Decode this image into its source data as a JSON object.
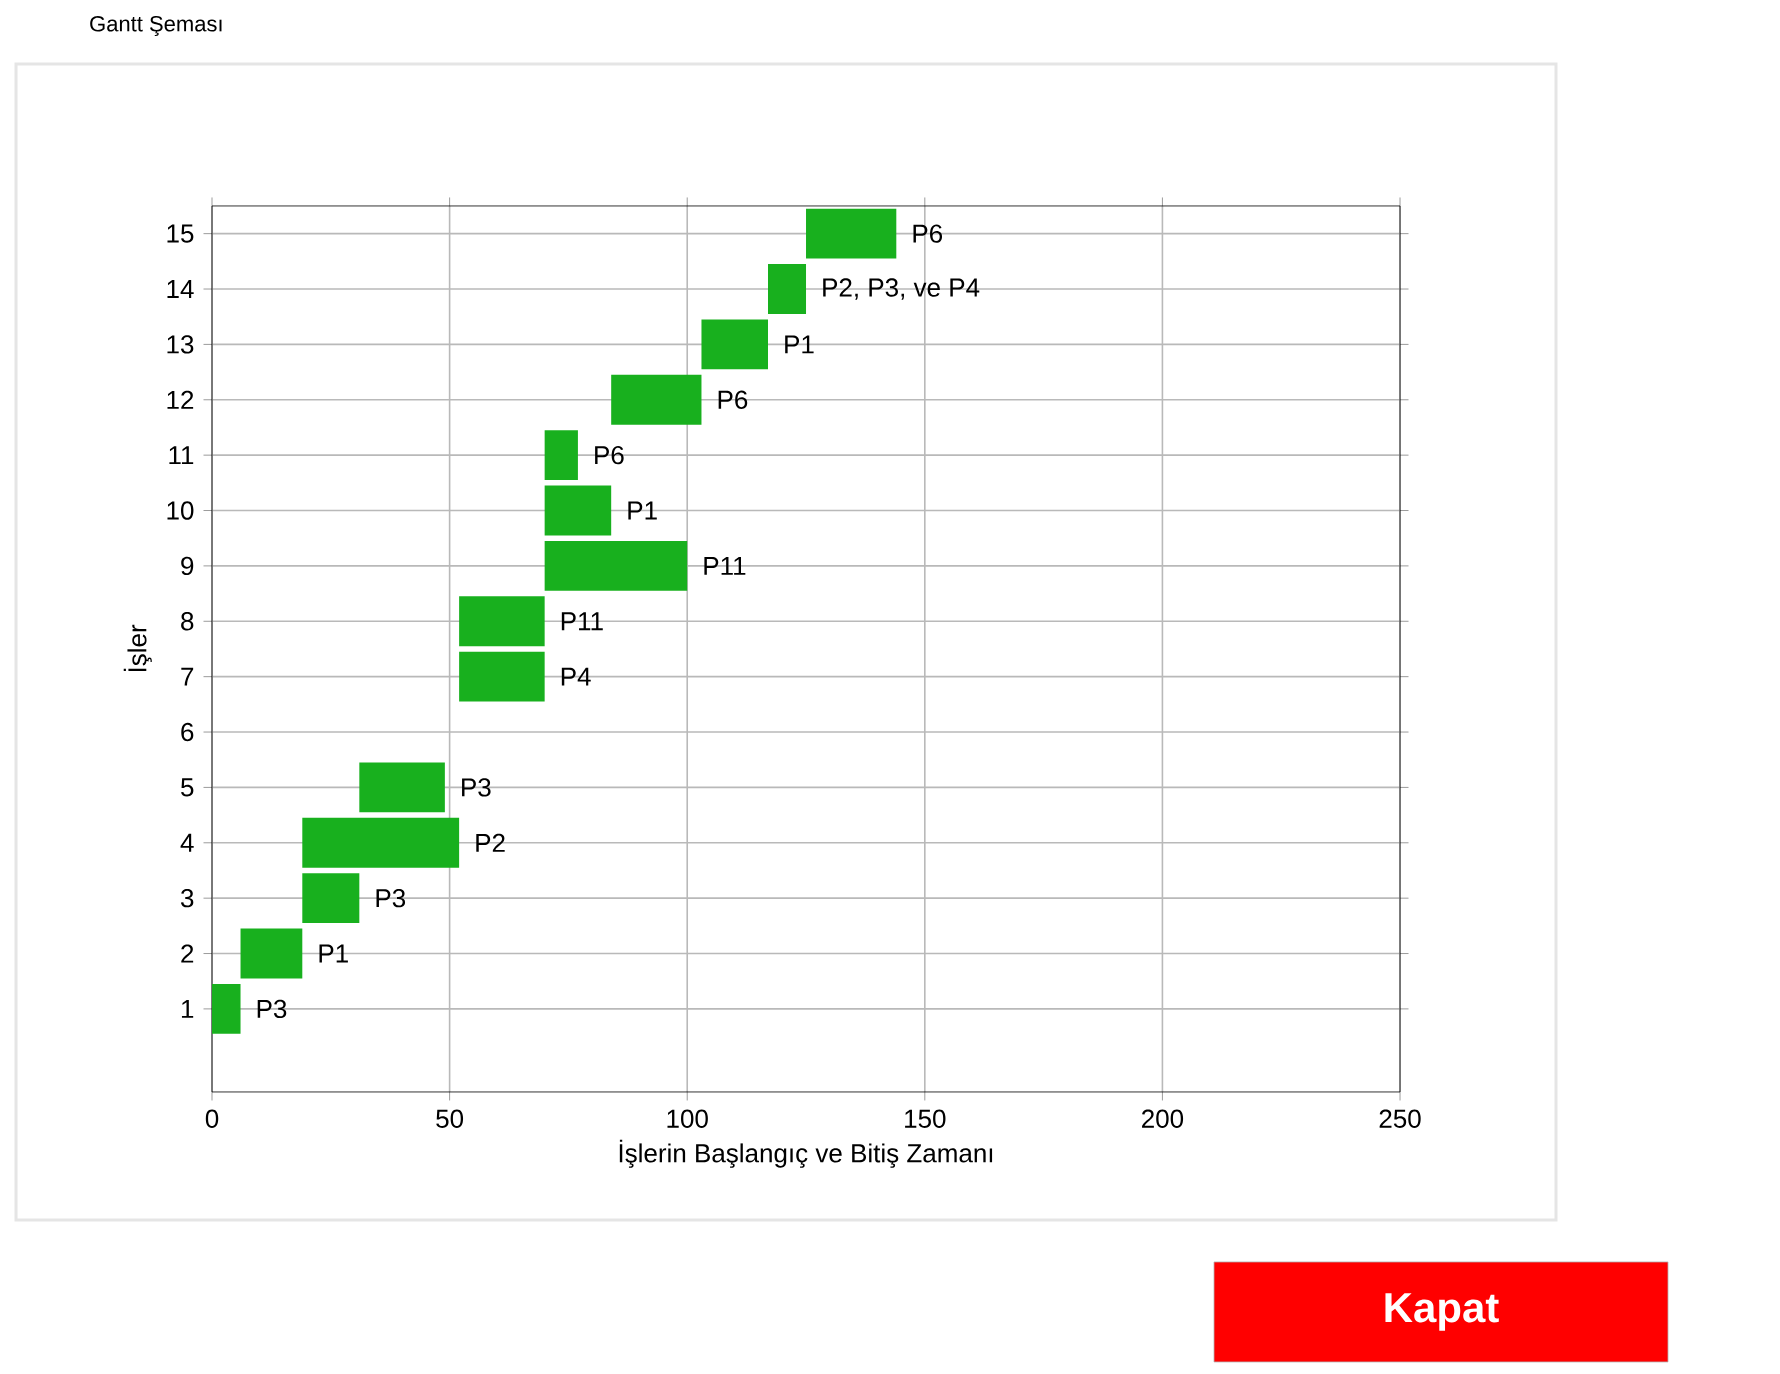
{
  "chart_data": {
    "type": "bar",
    "orientation": "horizontal",
    "title": "Gantt Şeması",
    "xlabel": "İşlerin Başlangıç ve Bitiş Zamanı",
    "ylabel": "İşler",
    "categories": [
      "15",
      "14",
      "13",
      "12",
      "11",
      "10",
      "9",
      "8",
      "7",
      "6",
      "5",
      "4",
      "3",
      "2",
      "1",
      null
    ],
    "base": [
      125,
      117,
      103,
      84,
      70,
      70,
      70,
      52,
      52,
      null,
      31,
      19,
      19,
      6,
      0,
      null
    ],
    "values": [
      19,
      8,
      14,
      19,
      7,
      14,
      30,
      18,
      18,
      null,
      18,
      33,
      12,
      13,
      6,
      null
    ],
    "value_labels": [
      "P6",
      "P2, P3, ve P4",
      "P1",
      "P6",
      "P6",
      "P1",
      "P11",
      "P11",
      "P4",
      null,
      "P3",
      "P2",
      "P3",
      "P1",
      "P3",
      null
    ],
    "color": "#18b01e",
    "xlim": [
      0,
      250
    ],
    "xticks": [
      0,
      50,
      100,
      150,
      200,
      250
    ],
    "grid": true,
    "annotations": [
      "Kapat"
    ]
  }
}
